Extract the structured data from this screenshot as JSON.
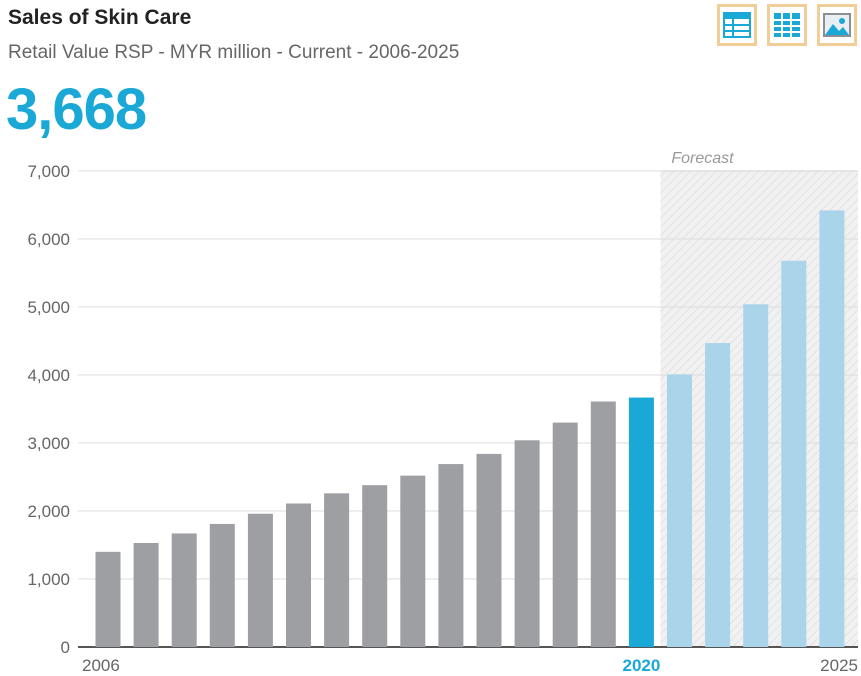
{
  "header": {
    "title": "Sales of Skin Care",
    "subtitle": "Retail Value RSP - MYR million - Current - 2006-2025",
    "current_value": "3,668"
  },
  "toolbar": {
    "icons": [
      "table-view-icon",
      "grid-view-icon",
      "image-view-icon"
    ]
  },
  "colors": {
    "history": "#9d9fa2",
    "current": "#1aa8d6",
    "forecast": "#a9d4ea",
    "accent": "#1aa8d6",
    "toolbar_border": "#f1cd97"
  },
  "chart_data": {
    "type": "bar",
    "title": "Sales of Skin Care",
    "xlabel": "",
    "ylabel": "",
    "ylim": [
      0,
      7000
    ],
    "yticks": [
      "0",
      "1,000",
      "2,000",
      "3,000",
      "4,000",
      "5,000",
      "6,000",
      "7,000"
    ],
    "categories": [
      "2006",
      "2007",
      "2008",
      "2009",
      "2010",
      "2011",
      "2012",
      "2013",
      "2014",
      "2015",
      "2016",
      "2017",
      "2018",
      "2019",
      "2020",
      "2021",
      "2022",
      "2023",
      "2024",
      "2025"
    ],
    "values": [
      1400,
      1530,
      1670,
      1810,
      1960,
      2110,
      2260,
      2380,
      2520,
      2690,
      2840,
      3040,
      3300,
      3610,
      3668,
      4010,
      4470,
      5040,
      5680,
      6420
    ],
    "current_year": "2020",
    "forecast_start": "2021",
    "forecast_label": "Forecast",
    "x_labels_shown": [
      "2006",
      "2020",
      "2025"
    ],
    "grid": true
  }
}
